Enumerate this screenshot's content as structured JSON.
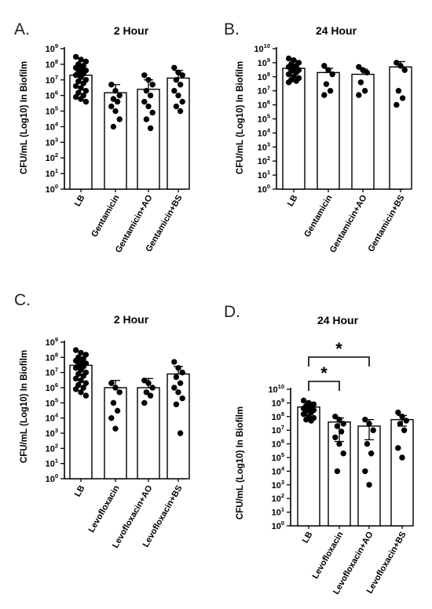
{
  "chart_data": [
    {
      "panel": "A.",
      "type": "bar",
      "title": "2 Hour",
      "ylabel": "CFU/mL (Log10) In Biofilm",
      "yscale": "log",
      "ylim": [
        1,
        1000000000
      ],
      "categories": [
        "LB",
        "Gentamicin",
        "Gentamicin+AO",
        "Gentamicin+BS"
      ],
      "values": [
        20000000,
        1500000,
        2500000,
        13000000
      ],
      "error_upper": [
        55000000,
        5000000,
        10000000,
        40000000
      ],
      "points": [
        [
          300000000,
          200000000,
          150000000,
          100000000,
          80000000,
          60000000,
          50000000,
          40000000,
          30000000,
          25000000,
          20000000,
          15000000,
          10000000,
          8000000,
          6000000,
          4000000,
          3000000,
          2000000,
          1500000,
          1000000,
          800000,
          600000,
          400000
        ],
        [
          5000000,
          2000000,
          1000000,
          600000,
          400000,
          200000,
          100000,
          30000,
          10000
        ],
        [
          20000000,
          10000000,
          5000000,
          2000000,
          1000000,
          400000,
          200000,
          80000,
          30000,
          8000
        ],
        [
          60000000,
          30000000,
          20000000,
          10000000,
          5000000,
          2000000,
          1000000,
          400000,
          200000,
          100000
        ]
      ]
    },
    {
      "panel": "B.",
      "type": "bar",
      "title": "24 Hour",
      "ylabel": "CFU/mL (Log10) In Biofilm",
      "yscale": "log",
      "ylim": [
        1,
        10000000000
      ],
      "categories": [
        "LB",
        "Gentamicin",
        "Gentamicin+AO",
        "Gentamicin+BS"
      ],
      "values": [
        400000000,
        200000000,
        150000000,
        500000000
      ],
      "error_upper": [
        700000000,
        400000000,
        350000000,
        1200000000
      ],
      "points": [
        [
          2000000000,
          1500000000,
          1000000000,
          800000000,
          600000000,
          500000000,
          400000000,
          300000000,
          250000000,
          200000000,
          150000000,
          100000000,
          80000000,
          60000000,
          50000000,
          40000000
        ],
        [
          600000000,
          300000000,
          150000000,
          30000000,
          10000000,
          5000000
        ],
        [
          500000000,
          300000000,
          200000000,
          40000000,
          10000000,
          5000000
        ],
        [
          1000000000,
          600000000,
          300000000,
          10000000,
          3000000,
          1000000
        ]
      ]
    },
    {
      "panel": "C.",
      "type": "bar",
      "title": "2 Hour",
      "ylabel": "CFU/mL (Log10) In Biofilm",
      "yscale": "log",
      "ylim": [
        1,
        1000000000
      ],
      "categories": [
        "LB",
        "Levofloxacin",
        "Levofloxacin+AO",
        "Levofloxacin+BS"
      ],
      "values": [
        30000000,
        1000000,
        1000000,
        8000000
      ],
      "error_upper": [
        70000000,
        3000000,
        4000000,
        25000000
      ],
      "points": [
        [
          300000000,
          200000000,
          150000000,
          100000000,
          80000000,
          60000000,
          50000000,
          40000000,
          30000000,
          25000000,
          20000000,
          15000000,
          10000000,
          8000000,
          6000000,
          4000000,
          3000000,
          2000000,
          1500000,
          1000000,
          800000,
          500000,
          300000
        ],
        [
          2000000,
          1000000,
          500000,
          100000,
          30000,
          10000,
          2000
        ],
        [
          3000000,
          2000000,
          1000000,
          500000,
          300000,
          100000
        ],
        [
          50000000,
          20000000,
          10000000,
          5000000,
          2000000,
          1000000,
          500000,
          200000,
          80000,
          1000
        ]
      ]
    },
    {
      "panel": "D.",
      "type": "bar",
      "title": "24 Hour",
      "ylabel": "CFU/mL (Log10) In Biofilm",
      "yscale": "log",
      "ylim": [
        1,
        10000000000
      ],
      "categories": [
        "LB",
        "Levofloxacin",
        "Levofloxacin+AO",
        "Levofloxacin+BS"
      ],
      "values": [
        500000000,
        40000000,
        20000000,
        60000000
      ],
      "error_upper": [
        800000000,
        80000000,
        60000000,
        120000000
      ],
      "error_lower": [
        350000000,
        1500000,
        2000000,
        20000000
      ],
      "points": [
        [
          1500000000,
          1000000000,
          800000000,
          600000000,
          500000000,
          400000000,
          350000000,
          300000000,
          250000000,
          200000000,
          150000000,
          100000000,
          80000000,
          60000000,
          50000000
        ],
        [
          100000000,
          60000000,
          30000000,
          20000000,
          8000000,
          3000000,
          1000000,
          200000,
          10000
        ],
        [
          60000000,
          30000000,
          10000000,
          1000000,
          200000,
          10000,
          1000
        ],
        [
          200000000,
          100000000,
          50000000,
          30000000,
          10000000,
          500000,
          100000
        ]
      ],
      "significance": [
        {
          "from": 0,
          "to": 1,
          "label": "*"
        },
        {
          "from": 0,
          "to": 2,
          "label": "*"
        }
      ]
    }
  ]
}
